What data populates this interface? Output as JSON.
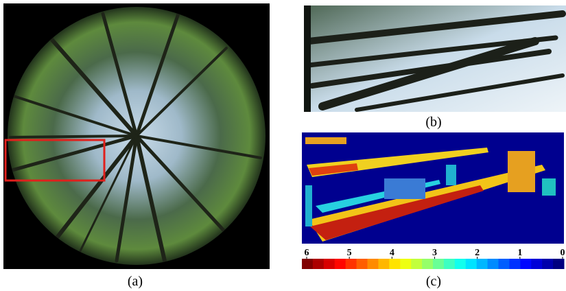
{
  "figure": {
    "captions": {
      "a": "(a)",
      "b": "(b)",
      "c": "(c)"
    },
    "colorbar": {
      "ticks": [
        6,
        5,
        4,
        3,
        2,
        1,
        0
      ]
    }
  }
}
